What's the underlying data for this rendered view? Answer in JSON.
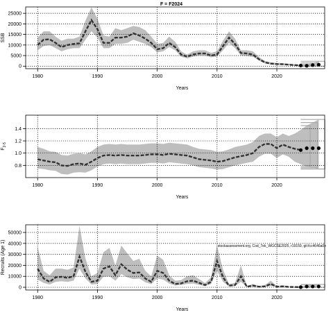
{
  "figure_title": "F = F2024",
  "chart_data": [
    {
      "type": "line",
      "ylabel": "SSB",
      "xlabel": "Years",
      "xlim": [
        1978,
        2028
      ],
      "ylim": [
        -1200,
        28000
      ],
      "x_ticks": [
        1980,
        1990,
        2000,
        2010,
        2020
      ],
      "y_ticks": [
        0,
        5000,
        10000,
        15000,
        20000,
        25000
      ],
      "y_tick_labels": [
        "0",
        "5000",
        "10000",
        "15000",
        "20000",
        "25000"
      ],
      "grid": "dotted",
      "band_color": "#bebebe",
      "line_color": "#333333",
      "years": [
        1980,
        1981,
        1982,
        1983,
        1984,
        1985,
        1986,
        1987,
        1988,
        1989,
        1990,
        1991,
        1992,
        1993,
        1994,
        1995,
        1996,
        1997,
        1998,
        1999,
        2000,
        2001,
        2002,
        2003,
        2004,
        2005,
        2006,
        2007,
        2008,
        2009,
        2010,
        2011,
        2012,
        2013,
        2014,
        2015,
        2016,
        2017,
        2018,
        2019,
        2020,
        2021,
        2022,
        2023,
        2024
      ],
      "median": [
        10000,
        12500,
        12700,
        11000,
        9000,
        10000,
        10500,
        10800,
        16500,
        21800,
        17500,
        11000,
        11000,
        13500,
        13500,
        14000,
        15500,
        14500,
        13000,
        11000,
        8000,
        8500,
        11000,
        9000,
        5500,
        4500,
        5500,
        6000,
        6000,
        5000,
        5500,
        9500,
        13500,
        10500,
        6200,
        6000,
        5500,
        3300,
        1800,
        1200,
        1000,
        900,
        700,
        500,
        300
      ],
      "lower": [
        7500,
        9500,
        10000,
        8500,
        7000,
        8000,
        8500,
        8500,
        12500,
        16500,
        13500,
        8500,
        8500,
        10500,
        10500,
        11000,
        12500,
        11500,
        10500,
        9000,
        6500,
        7000,
        9000,
        7500,
        4500,
        3700,
        4500,
        5000,
        5000,
        4200,
        4500,
        7500,
        11000,
        8500,
        5000,
        4800,
        4400,
        2600,
        1300,
        800,
        600,
        500,
        400,
        200,
        100
      ],
      "upper": [
        13500,
        16500,
        16500,
        14000,
        12000,
        13000,
        13000,
        14000,
        21500,
        27800,
        22500,
        14500,
        14000,
        18000,
        17000,
        18000,
        19000,
        18500,
        17000,
        14000,
        10500,
        11000,
        14000,
        11500,
        7000,
        5500,
        7000,
        7500,
        7500,
        6300,
        7000,
        12000,
        16500,
        13000,
        7500,
        7500,
        7000,
        4300,
        2500,
        1800,
        1500,
        1400,
        1100,
        800,
        600
      ],
      "forecast_years": [
        2025,
        2026,
        2027
      ],
      "forecast_median": [
        200,
        500,
        700
      ],
      "forecast_lower": [
        0,
        0,
        0
      ],
      "forecast_upper": [
        800,
        1500,
        2300
      ]
    },
    {
      "type": "line",
      "ylabel": "F",
      "ylabel_sub": "2-5",
      "xlabel": "Years",
      "xlim": [
        1978,
        2028
      ],
      "ylim": [
        0.6,
        1.62
      ],
      "x_ticks": [
        1980,
        1990,
        2000,
        2010,
        2020
      ],
      "y_ticks": [
        0.8,
        1.0,
        1.2,
        1.4
      ],
      "y_tick_labels": [
        "0.8",
        "1.0",
        "1.2",
        "1.4"
      ],
      "grid": "dotted",
      "band_color": "#bebebe",
      "line_color": "#333333",
      "years": [
        1980,
        1981,
        1982,
        1983,
        1984,
        1985,
        1986,
        1987,
        1988,
        1989,
        1990,
        1991,
        1992,
        1993,
        1994,
        1995,
        1996,
        1997,
        1998,
        1999,
        2000,
        2001,
        2002,
        2003,
        2004,
        2005,
        2006,
        2007,
        2008,
        2009,
        2010,
        2011,
        2012,
        2013,
        2014,
        2015,
        2016,
        2017,
        2018,
        2019,
        2020,
        2021,
        2022,
        2023,
        2024
      ],
      "median": [
        0.9,
        0.88,
        0.86,
        0.85,
        0.8,
        0.79,
        0.82,
        0.83,
        0.81,
        0.86,
        0.92,
        0.96,
        0.97,
        0.96,
        0.97,
        0.96,
        0.96,
        0.96,
        0.97,
        0.98,
        0.98,
        0.97,
        0.99,
        0.98,
        0.97,
        0.96,
        0.93,
        0.9,
        0.89,
        0.88,
        0.86,
        0.87,
        0.9,
        0.93,
        0.95,
        0.97,
        1.0,
        1.1,
        1.15,
        1.15,
        1.08,
        1.14,
        1.1,
        1.07,
        1.05
      ],
      "lower": [
        0.75,
        0.74,
        0.72,
        0.71,
        0.66,
        0.65,
        0.68,
        0.69,
        0.68,
        0.72,
        0.78,
        0.82,
        0.83,
        0.82,
        0.83,
        0.82,
        0.82,
        0.82,
        0.83,
        0.84,
        0.84,
        0.83,
        0.85,
        0.84,
        0.83,
        0.82,
        0.8,
        0.77,
        0.76,
        0.75,
        0.73,
        0.74,
        0.77,
        0.8,
        0.82,
        0.84,
        0.86,
        0.94,
        0.99,
        0.99,
        0.92,
        0.98,
        0.94,
        0.86,
        0.82
      ],
      "upper": [
        1.1,
        1.07,
        1.03,
        1.02,
        0.97,
        0.96,
        0.99,
        1.0,
        0.98,
        1.03,
        1.1,
        1.14,
        1.15,
        1.14,
        1.15,
        1.14,
        1.14,
        1.14,
        1.15,
        1.16,
        1.16,
        1.15,
        1.17,
        1.16,
        1.15,
        1.14,
        1.1,
        1.07,
        1.06,
        1.05,
        1.02,
        1.03,
        1.06,
        1.1,
        1.12,
        1.14,
        1.18,
        1.28,
        1.32,
        1.32,
        1.26,
        1.32,
        1.28,
        1.32,
        1.38
      ],
      "forecast_years": [
        2025,
        2026,
        2027
      ],
      "forecast_median": [
        1.08,
        1.08,
        1.08
      ],
      "forecast_lower": [
        0.78,
        0.76,
        0.74
      ],
      "forecast_upper": [
        1.45,
        1.5,
        1.55
      ]
    },
    {
      "type": "line",
      "ylabel": "Recruits (Age 1)",
      "xlabel": "Years",
      "annotation": "stockassessment.org, Cod_7ek_WGCSE2025, r19159, git:fcc4646a0e",
      "xlim": [
        1978,
        2028
      ],
      "ylim": [
        -2500,
        57000
      ],
      "x_ticks": [
        1980,
        1990,
        2000,
        2010,
        2020
      ],
      "y_ticks": [
        0,
        10000,
        20000,
        30000,
        40000,
        50000
      ],
      "y_tick_labels": [
        "0",
        "10000",
        "20000",
        "30000",
        "40000",
        "50000"
      ],
      "grid": "dotted",
      "band_color": "#bebebe",
      "line_color": "#333333",
      "years": [
        1980,
        1981,
        1982,
        1983,
        1984,
        1985,
        1986,
        1987,
        1988,
        1989,
        1990,
        1991,
        1992,
        1993,
        1994,
        1995,
        1996,
        1997,
        1998,
        1999,
        2000,
        2001,
        2002,
        2003,
        2004,
        2005,
        2006,
        2007,
        2008,
        2009,
        2010,
        2011,
        2012,
        2013,
        2014,
        2015,
        2016,
        2017,
        2018,
        2019,
        2020,
        2021,
        2022,
        2023,
        2024
      ],
      "median": [
        17000,
        8000,
        5000,
        9000,
        9500,
        8500,
        10000,
        28000,
        14000,
        5000,
        6000,
        17000,
        19000,
        11000,
        21000,
        16000,
        13000,
        13500,
        8000,
        5000,
        15000,
        13000,
        6000,
        3000,
        3500,
        5500,
        6000,
        4000,
        2000,
        5000,
        24000,
        9000,
        1500,
        2000,
        10000,
        500,
        1500,
        500,
        800,
        3000,
        500,
        800,
        300,
        200,
        100
      ],
      "lower": [
        7000,
        4000,
        2500,
        5000,
        5500,
        5000,
        6000,
        17000,
        8000,
        2500,
        3000,
        9500,
        10000,
        6000,
        12000,
        9000,
        7500,
        8000,
        4500,
        2800,
        8000,
        7000,
        3300,
        1600,
        2000,
        3000,
        3400,
        2200,
        1100,
        2800,
        15000,
        5000,
        700,
        1000,
        5000,
        200,
        600,
        200,
        300,
        1200,
        200,
        300,
        100,
        50,
        0
      ],
      "upper": [
        37000,
        15000,
        11000,
        17000,
        17000,
        16000,
        18000,
        56000,
        26000,
        10000,
        13000,
        32000,
        36000,
        20000,
        38000,
        31000,
        24000,
        26000,
        15000,
        10000,
        29000,
        25000,
        11000,
        6000,
        6500,
        10000,
        11000,
        7500,
        3800,
        9000,
        38000,
        16000,
        3000,
        4000,
        20000,
        1200,
        3000,
        1200,
        2000,
        6000,
        1200,
        1800,
        700,
        500,
        300
      ],
      "forecast_years": [
        2025,
        2026,
        2027
      ],
      "forecast_median": [
        700,
        700,
        700
      ],
      "forecast_lower": [
        0,
        0,
        0
      ],
      "forecast_upper": [
        2500,
        2500,
        2500
      ]
    }
  ]
}
